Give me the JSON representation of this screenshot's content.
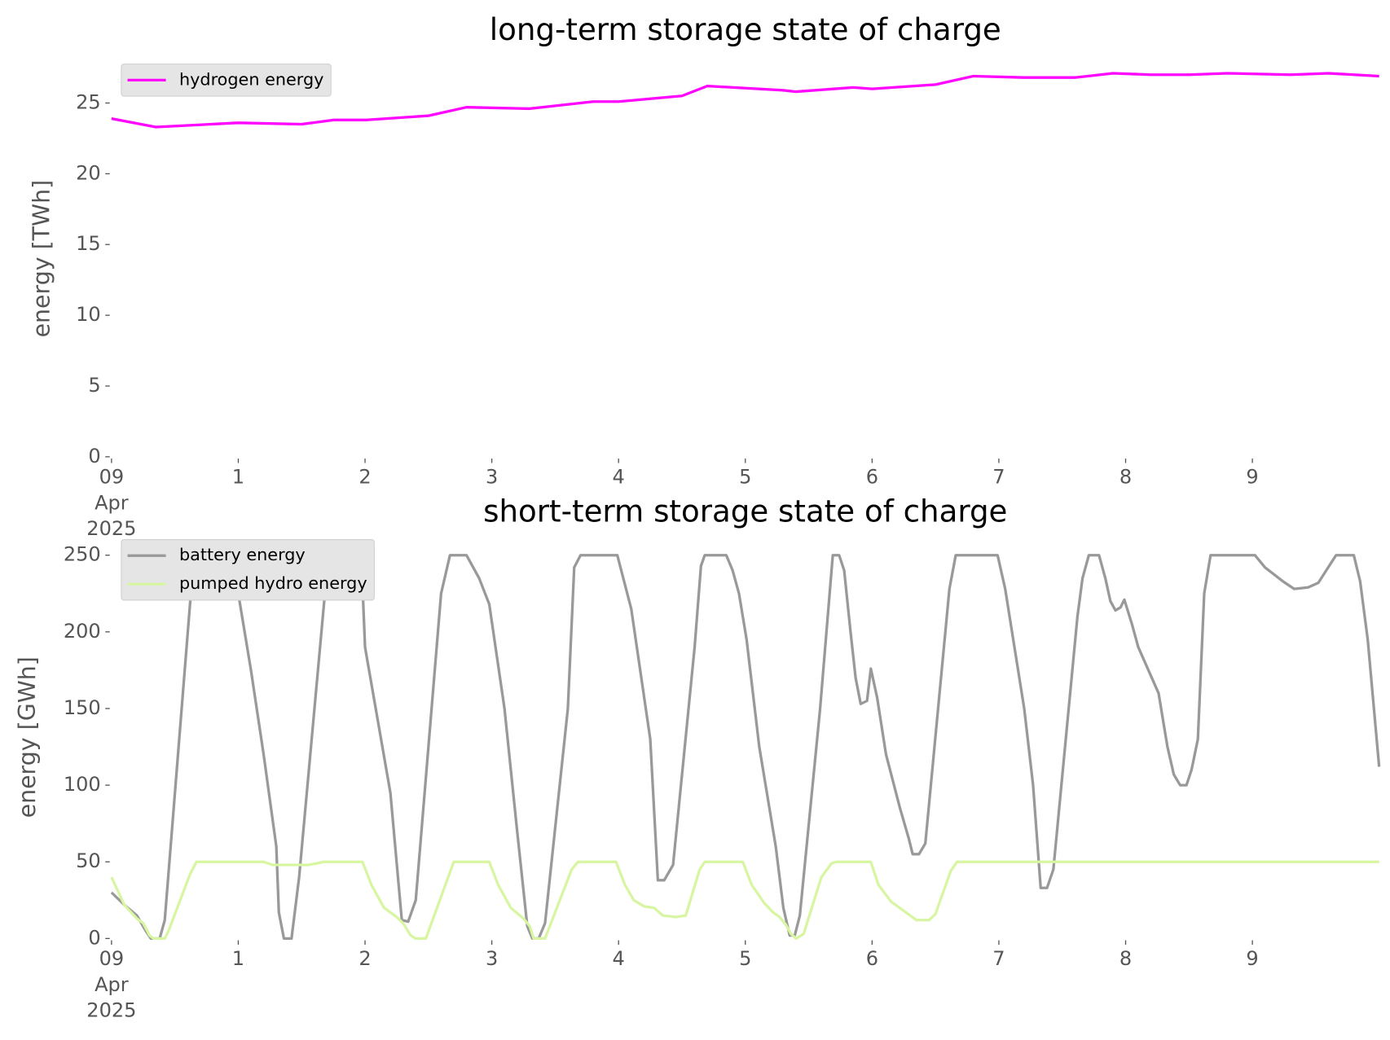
{
  "chart_data": [
    {
      "type": "line",
      "title": "long-term storage state of charge",
      "ylabel": "energy [TWh]",
      "xlim": [
        0,
        10
      ],
      "ylim": [
        0,
        28
      ],
      "xticks": [
        {
          "value": 0,
          "label": [
            "09",
            "Apr",
            "2025"
          ]
        },
        1,
        2,
        3,
        4,
        5,
        6,
        7,
        8,
        9
      ],
      "yticks": [
        0,
        5,
        10,
        15,
        20,
        25
      ],
      "legend": "upper left",
      "series": [
        {
          "name": "hydrogen energy",
          "color": "#ff00ff",
          "x": [
            0,
            0.35,
            1,
            1.5,
            1.75,
            2,
            2.5,
            2.8,
            3.3,
            3.8,
            4,
            4.5,
            4.7,
            5.3,
            5.4,
            5.85,
            6,
            6.5,
            6.8,
            7.2,
            7.6,
            7.9,
            8.2,
            8.5,
            8.8,
            9.3,
            9.6,
            10
          ],
          "values": [
            23.9,
            23.3,
            23.6,
            23.5,
            23.8,
            23.8,
            24.1,
            24.7,
            24.6,
            25.1,
            25.1,
            25.5,
            26.2,
            25.9,
            25.8,
            26.1,
            26.0,
            26.3,
            26.9,
            26.8,
            26.8,
            27.1,
            27.0,
            27.0,
            27.1,
            27.0,
            27.1,
            26.9
          ]
        }
      ]
    },
    {
      "type": "line",
      "title": "short-term storage state of charge",
      "ylabel": "energy [GWh]",
      "xlim": [
        0,
        10
      ],
      "ylim": [
        0,
        262.5
      ],
      "xticks": [
        {
          "value": 0,
          "label": [
            "09",
            "Apr",
            "2025"
          ]
        },
        1,
        2,
        3,
        4,
        5,
        6,
        7,
        8,
        9
      ],
      "yticks": [
        0,
        50,
        100,
        150,
        200,
        250
      ],
      "legend": "upper left",
      "series": [
        {
          "name": "battery energy",
          "color": "#999999",
          "x": [
            0,
            0.1,
            0.2,
            0.27,
            0.31,
            0.38,
            0.42,
            0.65,
            0.95,
            1.0,
            1.1,
            1.2,
            1.3,
            1.32,
            1.36,
            1.42,
            1.48,
            1.7,
            1.9,
            1.97,
            2.0,
            2.2,
            2.29,
            2.34,
            2.4,
            2.6,
            2.67,
            2.8,
            2.9,
            2.98,
            3.1,
            3.2,
            3.28,
            3.32,
            3.37,
            3.42,
            3.6,
            3.65,
            3.7,
            3.99,
            4.1,
            4.25,
            4.31,
            4.36,
            4.43,
            4.6,
            4.65,
            4.68,
            4.85,
            4.9,
            4.95,
            5.01,
            5.06,
            5.11,
            5.24,
            5.3,
            5.35,
            5.39,
            5.43,
            5.59,
            5.69,
            5.74,
            5.78,
            5.83,
            5.87,
            5.91,
            5.96,
            5.99,
            6.04,
            6.11,
            6.22,
            6.29,
            6.32,
            6.37,
            6.42,
            6.61,
            6.66,
            6.99,
            7.05,
            7.2,
            7.27,
            7.33,
            7.38,
            7.43,
            7.62,
            7.66,
            7.71,
            7.79,
            7.84,
            7.88,
            7.92,
            7.96,
            7.99,
            8.05,
            8.1,
            8.26,
            8.33,
            8.38,
            8.43,
            8.48,
            8.52,
            8.57,
            8.62,
            8.67,
            9.02,
            9.1,
            9.24,
            9.33,
            9.44,
            9.52,
            9.66,
            9.8,
            9.85,
            9.91,
            10
          ],
          "values": [
            30,
            22,
            15,
            5,
            0,
            0,
            12,
            250,
            250,
            225,
            175,
            120,
            60,
            17,
            0,
            0,
            40,
            240,
            240,
            250,
            190,
            95,
            12,
            11,
            25,
            225,
            250,
            250,
            235,
            218,
            150,
            70,
            8,
            0,
            0,
            10,
            150,
            242,
            250,
            250,
            215,
            130,
            38,
            38,
            48,
            190,
            243,
            250,
            250,
            240,
            225,
            195,
            160,
            125,
            60,
            20,
            2,
            2,
            15,
            150,
            250,
            250,
            240,
            200,
            170,
            153,
            155,
            176,
            157,
            120,
            85,
            65,
            55,
            55,
            62,
            228,
            250,
            250,
            228,
            150,
            100,
            33,
            33,
            45,
            210,
            235,
            250,
            250,
            235,
            220,
            214,
            216,
            221,
            205,
            190,
            160,
            125,
            107,
            100,
            100,
            110,
            130,
            225,
            250,
            250,
            242,
            233,
            228,
            229,
            232,
            250,
            250,
            233,
            195,
            112
          ]
        },
        {
          "name": "pumped hydro energy",
          "color": "#d8f5a2",
          "x": [
            0,
            0.1,
            0.2,
            0.25,
            0.3,
            0.33,
            0.42,
            0.45,
            0.62,
            0.67,
            1.2,
            1.27,
            1.55,
            1.62,
            1.67,
            1.98,
            2.05,
            2.15,
            2.25,
            2.3,
            2.36,
            2.4,
            2.48,
            2.7,
            2.98,
            3.05,
            3.15,
            3.25,
            3.3,
            3.33,
            3.42,
            3.63,
            3.68,
            3.98,
            4.05,
            4.12,
            4.2,
            4.28,
            4.35,
            4.45,
            4.53,
            4.64,
            4.68,
            4.98,
            5.05,
            5.15,
            5.22,
            5.27,
            5.32,
            5.36,
            5.4,
            5.46,
            5.6,
            5.68,
            5.72,
            5.99,
            6.05,
            6.15,
            6.25,
            6.35,
            6.45,
            6.5,
            6.62,
            6.67,
            10
          ],
          "values": [
            40,
            22,
            13,
            10,
            2,
            0,
            0,
            5,
            42,
            50,
            50,
            48,
            48,
            49,
            50,
            50,
            35,
            20,
            14,
            10,
            2,
            0,
            0,
            50,
            50,
            35,
            20,
            13,
            8,
            0,
            0,
            45,
            50,
            50,
            35,
            25,
            21,
            20,
            15,
            14,
            15,
            45,
            50,
            50,
            35,
            23,
            17,
            14,
            9,
            3,
            0,
            3,
            40,
            49,
            50,
            50,
            35,
            24,
            18,
            12,
            12,
            16,
            44,
            50,
            50
          ]
        }
      ]
    }
  ]
}
